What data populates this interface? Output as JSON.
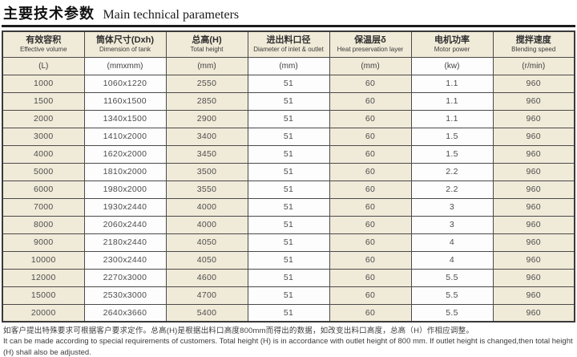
{
  "title": {
    "zh": "主要技术参数",
    "en": "Main technical parameters"
  },
  "table": {
    "columns": [
      {
        "zh": "有效容积",
        "en": "Effective volume",
        "unit": "(L)"
      },
      {
        "zh": "筒体尺寸(Dxh)",
        "en": "Dimension of tank",
        "unit": "(mmxmm)"
      },
      {
        "zh": "总高(H)",
        "en": "Total height",
        "unit": "(mm)"
      },
      {
        "zh": "进出料口径",
        "en": "Diameter of inlet & outlet",
        "unit": "(mm)"
      },
      {
        "zh": "保温层δ",
        "en": "Heat preservation layer",
        "unit": "(mm)"
      },
      {
        "zh": "电机功率",
        "en": "Motor power",
        "unit": "(kw)"
      },
      {
        "zh": "搅拌速度",
        "en": "Blending speed",
        "unit": "(r/min)"
      }
    ],
    "rows": [
      [
        "1000",
        "1060x1220",
        "2550",
        "51",
        "60",
        "1.1",
        "960"
      ],
      [
        "1500",
        "1160x1500",
        "2850",
        "51",
        "60",
        "1.1",
        "960"
      ],
      [
        "2000",
        "1340x1500",
        "2900",
        "51",
        "60",
        "1.1",
        "960"
      ],
      [
        "3000",
        "1410x2000",
        "3400",
        "51",
        "60",
        "1.5",
        "960"
      ],
      [
        "4000",
        "1620x2000",
        "3450",
        "51",
        "60",
        "1.5",
        "960"
      ],
      [
        "5000",
        "1810x2000",
        "3500",
        "51",
        "60",
        "2.2",
        "960"
      ],
      [
        "6000",
        "1980x2000",
        "3550",
        "51",
        "60",
        "2.2",
        "960"
      ],
      [
        "7000",
        "1930x2440",
        "4000",
        "51",
        "60",
        "3",
        "960"
      ],
      [
        "8000",
        "2060x2440",
        "4000",
        "51",
        "60",
        "3",
        "960"
      ],
      [
        "9000",
        "2180x2440",
        "4050",
        "51",
        "60",
        "4",
        "960"
      ],
      [
        "10000",
        "2300x2440",
        "4050",
        "51",
        "60",
        "4",
        "960"
      ],
      [
        "12000",
        "2270x3000",
        "4600",
        "51",
        "60",
        "5.5",
        "960"
      ],
      [
        "15000",
        "2530x3000",
        "4700",
        "51",
        "60",
        "5.5",
        "960"
      ],
      [
        "20000",
        "2640x3660",
        "5400",
        "51",
        "60",
        "5.5",
        "960"
      ]
    ]
  },
  "notes": {
    "zh": "如客户提出特殊要求可根据客户要求定作。总高(H)是根据出料口高度800mm而得出的数据，如改变出料口高度，总高（H）作相应调整。",
    "en": "It can be made according to special requirements of customers. Total height (H) is in accordance with outlet height of 800 mm. If outlet height is changed,then total height (H) shall also be adjusted."
  },
  "colors": {
    "cream": "#f0ead8",
    "white": "#fdfdfd",
    "border": "#4a4a4a",
    "title_rule": "#1c1c1c"
  }
}
